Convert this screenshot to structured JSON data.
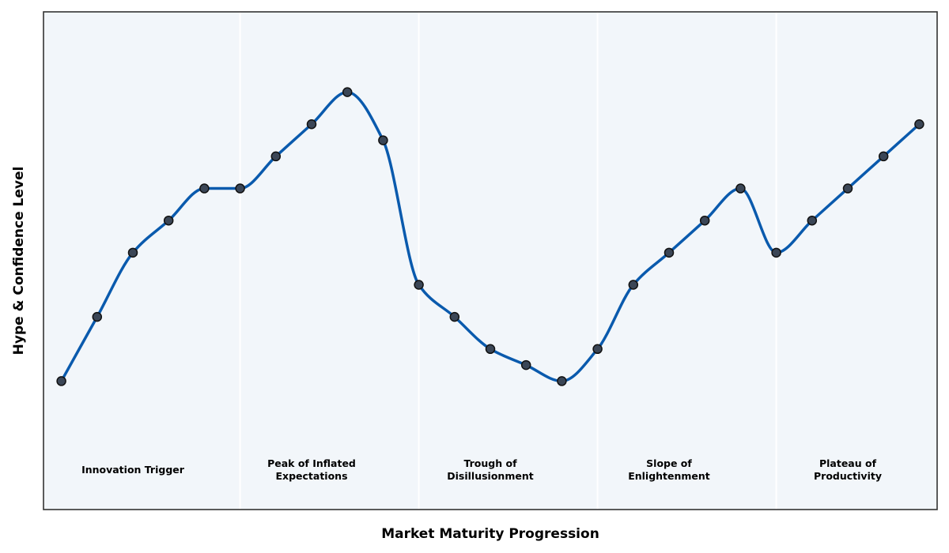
{
  "chart_data": {
    "type": "line",
    "title": "",
    "xlabel": "Market Maturity Progression",
    "ylabel": "Hype & Confidence Level",
    "xlim": [
      -0.5,
      24.5
    ],
    "ylim": [
      0,
      31
    ],
    "grid": false,
    "x": [
      0,
      1,
      2,
      3,
      4,
      5,
      6,
      7,
      8,
      9,
      10,
      11,
      12,
      13,
      14,
      15,
      16,
      17,
      18,
      19,
      20,
      21,
      22,
      23,
      24
    ],
    "series": [
      {
        "name": "",
        "values": [
          8,
          12,
          16,
          18,
          20,
          20,
          22,
          24,
          26,
          23,
          14,
          12,
          10,
          9,
          8,
          10,
          14,
          16,
          18,
          20,
          16,
          18,
          20,
          22,
          24
        ]
      }
    ],
    "phases": [
      {
        "label": [
          "Innovation Trigger"
        ],
        "x_center": 2,
        "x_end": 5
      },
      {
        "label": [
          "Peak of Inflated",
          "Expectations"
        ],
        "x_center": 7,
        "x_end": 10
      },
      {
        "label": [
          "Trough of",
          "Disillusionment"
        ],
        "x_center": 12,
        "x_end": 15
      },
      {
        "label": [
          "Slope of",
          "Enlightenment"
        ],
        "x_center": 17,
        "x_end": 20
      },
      {
        "label": [
          "Plateau of",
          "Productivity"
        ],
        "x_center": 22,
        "x_end": null
      }
    ],
    "phase_label_y": 2.5,
    "colors": {
      "line": "#0a5aad",
      "marker_fill": "#3b4656",
      "marker_edge": "#111111",
      "plot_background": "#f2f6fa",
      "separator": "#ffffff",
      "frame": "#333333"
    }
  }
}
